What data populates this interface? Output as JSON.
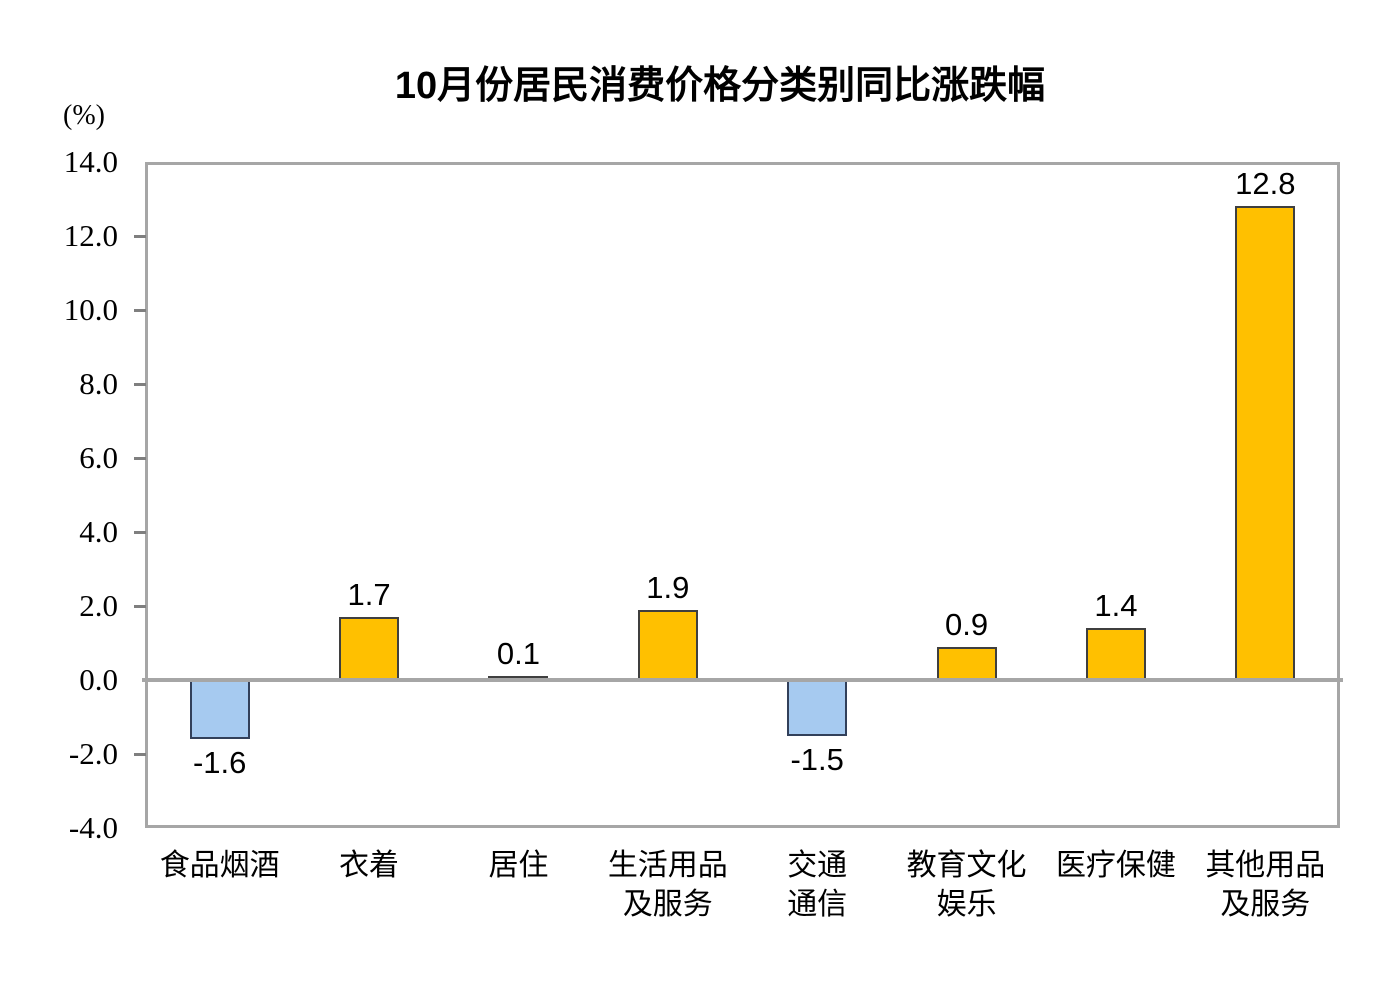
{
  "title": "10月份居民消费价格分类别同比涨跌幅",
  "unit_label": "(%)",
  "chart_data": {
    "type": "bar",
    "title": "10月份居民消费价格分类别同比涨跌幅",
    "xlabel": "",
    "ylabel": "(%)",
    "categories": [
      "食品烟酒",
      "衣着",
      "居住",
      "生活用品\n及服务",
      "交通\n通信",
      "教育文化\n娱乐",
      "医疗保健",
      "其他用品\n及服务"
    ],
    "values": [
      -1.6,
      1.7,
      0.1,
      1.9,
      -1.5,
      0.9,
      1.4,
      12.8
    ],
    "value_labels": [
      "-1.6",
      "1.7",
      "0.1",
      "1.9",
      "-1.5",
      "0.9",
      "1.4",
      "12.8"
    ],
    "ylim": [
      -4.0,
      14.0
    ],
    "ytick_step": 2.0,
    "y_ticks": [
      "14.0",
      "12.0",
      "10.0",
      "8.0",
      "6.0",
      "4.0",
      "2.0",
      "0.0",
      "-2.0",
      "-4.0"
    ],
    "grid": false,
    "legend": "none",
    "colors": {
      "positive_fill": "#FFC000",
      "positive_border": "#3F3F3F",
      "negative_fill": "#A6CAF0",
      "negative_border": "#32405A",
      "axis_frame": "#A6A6A6",
      "zero_line": "#A6A6A6",
      "tick": "#7F7F7F",
      "text": "#000000"
    }
  }
}
